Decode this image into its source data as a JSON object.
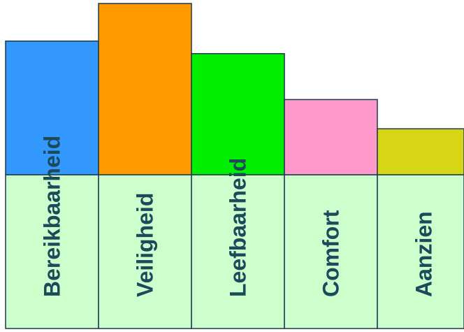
{
  "chart_data": {
    "type": "bar",
    "title": "",
    "xlabel": "",
    "ylabel": "",
    "categories": [
      "Bereikbaarheid",
      "Veiligheid",
      "Leefbaarheid",
      "Comfort",
      "Aanzien"
    ],
    "values": [
      32,
      41,
      29,
      18,
      11
    ],
    "ylim": [
      0,
      41
    ],
    "colors": [
      "#3399ff",
      "#ff9900",
      "#00ee00",
      "#ff99cc",
      "#d6d617"
    ],
    "label_panel_color": "#ccffcc",
    "stroke_color": "#1b3a4a",
    "grid": false,
    "legend": "none"
  }
}
